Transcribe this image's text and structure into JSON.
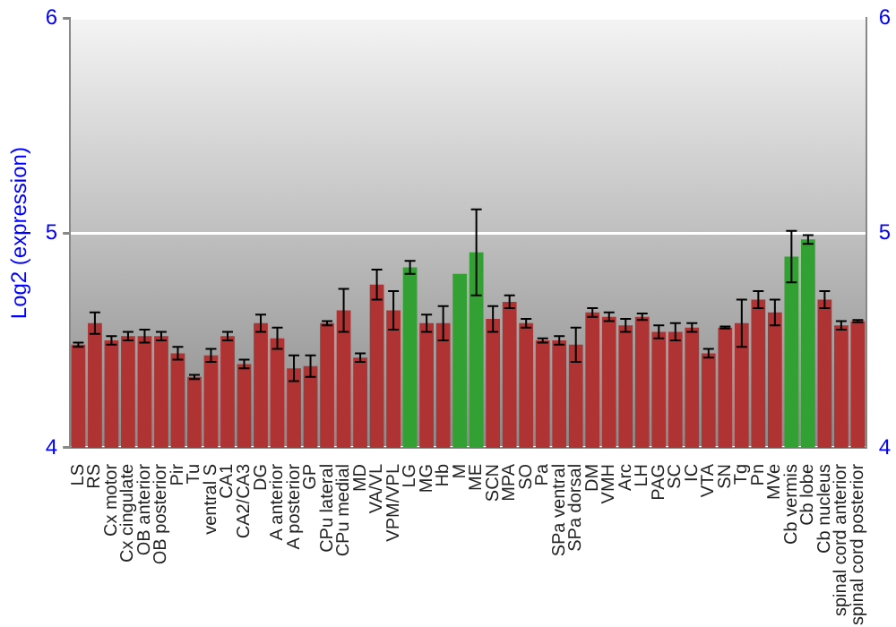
{
  "chart_data": {
    "type": "bar",
    "ylabel": "Log2 (expression)",
    "categories": [
      "LS",
      "RS",
      "Cx motor",
      "Cx cingulate",
      "OB anterior",
      "OB posterior",
      "Pir",
      "Tu",
      "ventral S",
      "CA1",
      "CA2/CA3",
      "DG",
      "A anterior",
      "A posterior",
      "GP",
      "CPu lateral",
      "CPu medial",
      "MD",
      "VA/VL",
      "VPM/VPL",
      "LG",
      "MG",
      "Hb",
      "M",
      "ME",
      "SCN",
      "MPA",
      "SO",
      "Pa",
      "SPa ventral",
      "SPa dorsal",
      "DM",
      "VMH",
      "Arc",
      "LH",
      "PAG",
      "SC",
      "IC",
      "VTA",
      "SN",
      "Tg",
      "Pn",
      "MVe",
      "Cb vermis",
      "Cb lobe",
      "Cb nucleus",
      "spinal cord anterior",
      "spinal cord posterior"
    ],
    "values": [
      4.48,
      4.58,
      4.5,
      4.52,
      4.52,
      4.52,
      4.44,
      4.33,
      4.43,
      4.52,
      4.39,
      4.58,
      4.51,
      4.37,
      4.38,
      4.58,
      4.64,
      4.42,
      4.76,
      4.64,
      4.84,
      4.58,
      4.58,
      4.81,
      4.91,
      4.6,
      4.68,
      4.58,
      4.5,
      4.5,
      4.48,
      4.63,
      4.61,
      4.57,
      4.61,
      4.54,
      4.54,
      4.56,
      4.44,
      4.56,
      4.58,
      4.69,
      4.63,
      4.89,
      4.97,
      4.69,
      4.57,
      4.59
    ],
    "errors": [
      0.01,
      0.05,
      0.02,
      0.02,
      0.03,
      0.02,
      0.03,
      0.01,
      0.03,
      0.02,
      0.02,
      0.04,
      0.05,
      0.06,
      0.05,
      0.01,
      0.1,
      0.02,
      0.07,
      0.09,
      0.03,
      0.04,
      0.08,
      null,
      0.2,
      0.06,
      0.03,
      0.02,
      0.01,
      0.02,
      0.08,
      0.02,
      0.02,
      0.03,
      0.015,
      0.03,
      0.04,
      0.02,
      0.02,
      0.005,
      0.11,
      0.04,
      0.06,
      0.12,
      0.02,
      0.04,
      0.02,
      0.005
    ],
    "colors": [
      "#b03333",
      "#b03333",
      "#b03333",
      "#b03333",
      "#b03333",
      "#b03333",
      "#b03333",
      "#b03333",
      "#b03333",
      "#b03333",
      "#b03333",
      "#b03333",
      "#b03333",
      "#b03333",
      "#b03333",
      "#b03333",
      "#b03333",
      "#b03333",
      "#b03333",
      "#b03333",
      "#33a033",
      "#b03333",
      "#b03333",
      "#33a033",
      "#33a033",
      "#b03333",
      "#b03333",
      "#b03333",
      "#b03333",
      "#b03333",
      "#b03333",
      "#b03333",
      "#b03333",
      "#b03333",
      "#b03333",
      "#b03333",
      "#b03333",
      "#b03333",
      "#b03333",
      "#b03333",
      "#b03333",
      "#b03333",
      "#b03333",
      "#33a033",
      "#33a033",
      "#b03333",
      "#b03333",
      "#b03333"
    ],
    "ylim": [
      4,
      6
    ],
    "yticks": [
      4,
      5,
      6
    ],
    "y2lim": [
      4,
      6
    ],
    "y2ticks": [
      4,
      5,
      6
    ],
    "grid": "y"
  }
}
